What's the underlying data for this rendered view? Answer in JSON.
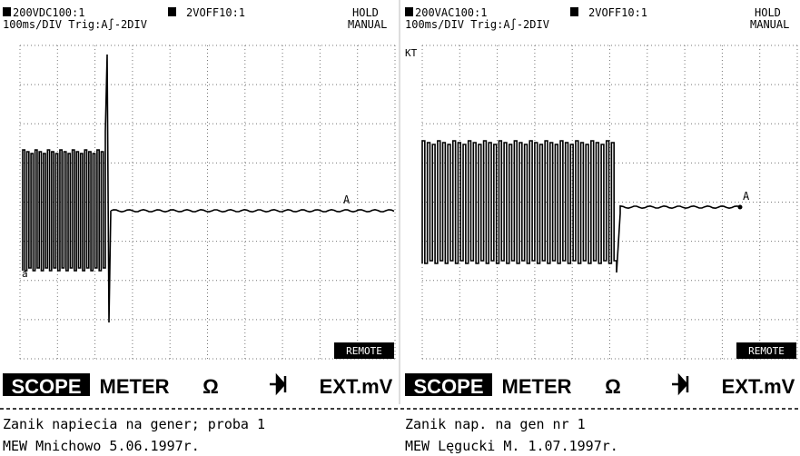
{
  "panels": [
    {
      "header": {
        "channel_a": "200VDC100:1",
        "channel_b": "2VOFF10:1",
        "mode": "HOLD",
        "timebase": "100ms/DIV Trig:A∫-2DIV",
        "trigger_mode": "MANUAL"
      },
      "trace_label": "A",
      "marker": "a",
      "remote": "REMOTE",
      "menu": [
        "SCOPE",
        "METER",
        "Ω",
        "EXT.mV"
      ],
      "caption": [
        "Zanik napiecia na gener; proba 1",
        "MEW Mnichowo 5.06.1997r."
      ]
    },
    {
      "header": {
        "channel_a": "200VAC100:1",
        "channel_b": "2VOFF10:1",
        "mode": "HOLD",
        "timebase": "100ms/DIV Trig:A∫-2DIV",
        "trigger_mode": "MANUAL"
      },
      "trace_label": "A",
      "marker": "KT",
      "remote": "REMOTE",
      "menu": [
        "SCOPE",
        "METER",
        "Ω",
        "EXT.mV"
      ],
      "caption": [
        "Zanik nap. na gen nr 1",
        "MEW Lęgucki M. 1.07.1997r."
      ]
    }
  ]
}
